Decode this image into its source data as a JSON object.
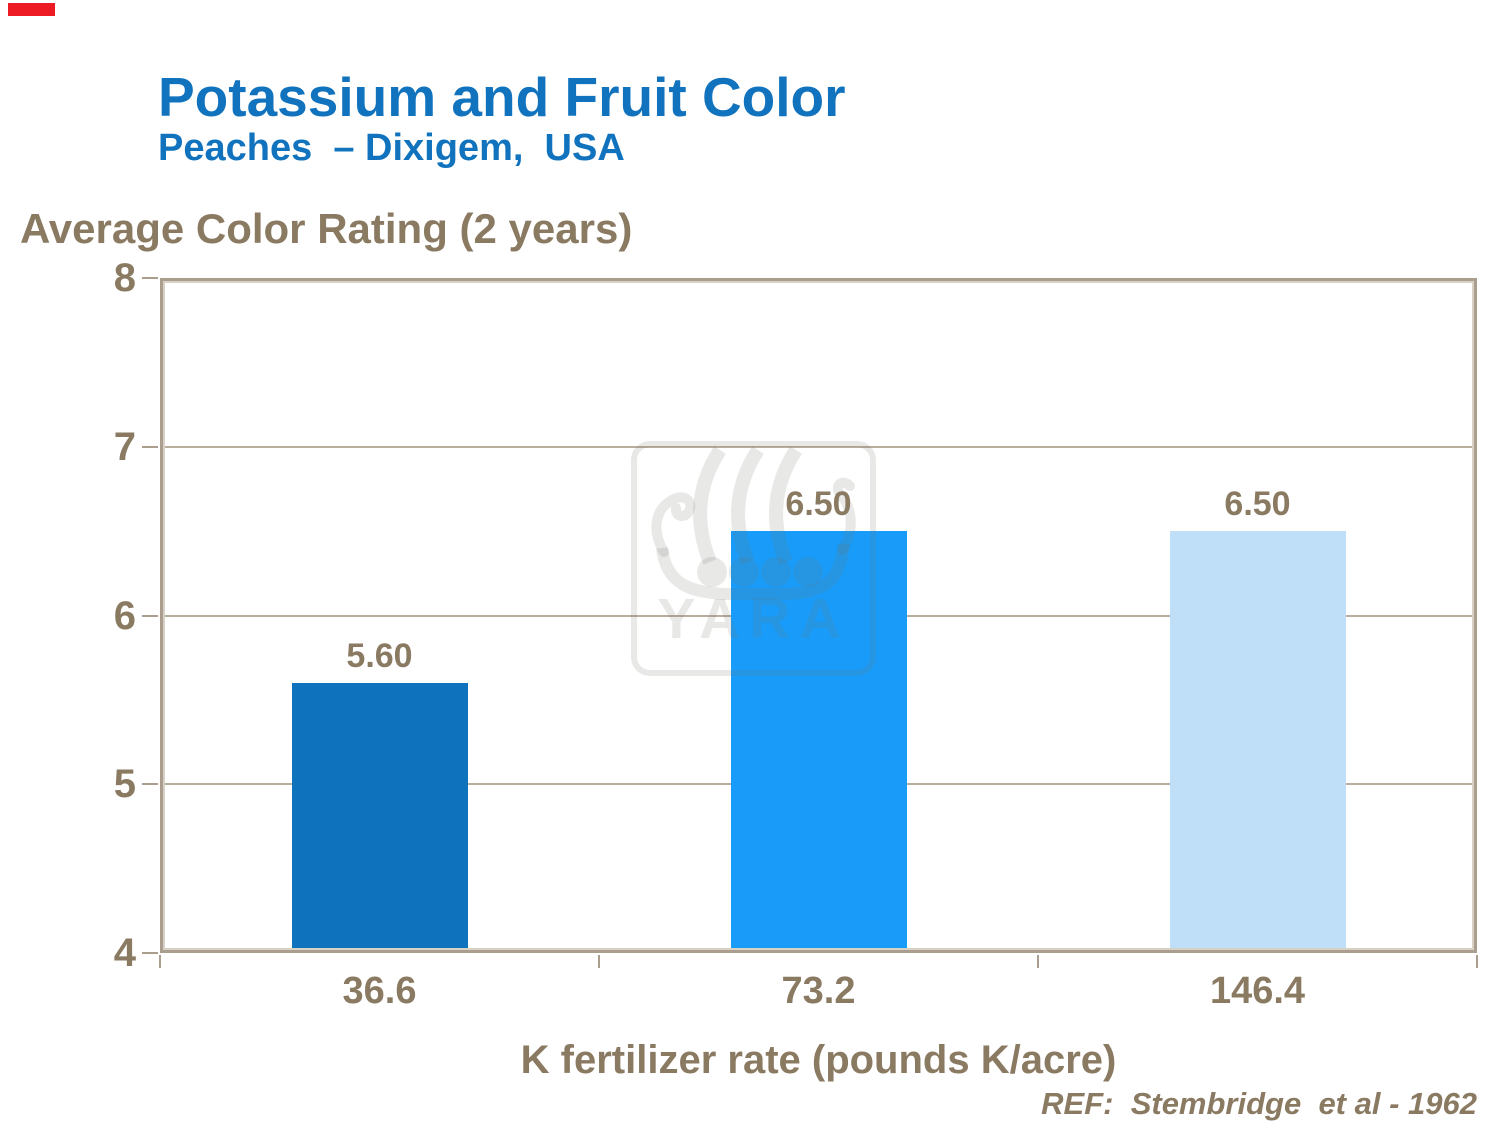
{
  "slide": {
    "title": "Potassium and Fruit Color",
    "subtitle": "Peaches  – Dixigem,  USA",
    "reference": "REF:  Stembridge  et al - 1962",
    "watermark_text": "YARA"
  },
  "chart_data": {
    "type": "bar",
    "title": "Average Color Rating (2 years)",
    "ylabel": "Average Color Rating (2 years)",
    "xlabel": "K fertilizer rate (pounds K/acre)",
    "categories": [
      "36.6",
      "73.2",
      "146.4"
    ],
    "values": [
      5.6,
      6.5,
      6.5
    ],
    "value_labels": [
      "5.60",
      "6.50",
      "6.50"
    ],
    "ylim": [
      4,
      8
    ],
    "yticks": [
      4,
      5,
      6,
      7,
      8
    ],
    "grid": true,
    "legend": false,
    "bar_colors": [
      "#0f72bc",
      "#199cf9",
      "#bfdff8"
    ]
  },
  "colors": {
    "title_blue": "#1173be",
    "axis_text_brown": "#8a7a62",
    "frame_tan": "#ab9e8f",
    "frame_highlight": "#d8d1c6",
    "gridline": "#b9ad9e",
    "accent_red": "#ed1c24",
    "watermark_gray": "#e9e9e9"
  }
}
